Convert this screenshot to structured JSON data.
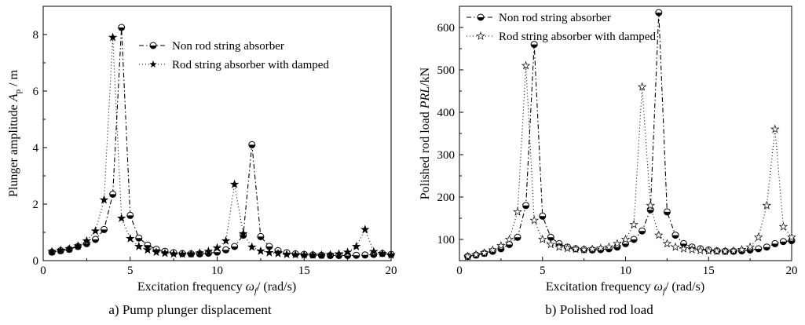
{
  "chart_data": [
    {
      "type": "line",
      "caption": "a) Pump plunger displacement",
      "xlabel": "Excitation frequency ω_f / (rad/s)",
      "ylabel": "Plunger amplitude A_p / m",
      "xlim": [
        0,
        20
      ],
      "ylim": [
        0,
        9
      ],
      "xticks": [
        "0",
        "5",
        "10",
        "15",
        "20"
      ],
      "yticks": [
        "0",
        "2",
        "4",
        "6",
        "8"
      ],
      "legend_position": "top-right",
      "grid": false,
      "series": [
        {
          "name": "Non rod string absorber",
          "marker": "half-filled circle",
          "dash": "dash-dot",
          "x": [
            0.5,
            1,
            1.5,
            2,
            2.5,
            3,
            3.5,
            4,
            4.5,
            5,
            5.5,
            6,
            6.5,
            7,
            7.5,
            8,
            8.5,
            9,
            9.5,
            10,
            10.5,
            11,
            11.5,
            12,
            12.5,
            13,
            13.5,
            14,
            14.5,
            15,
            15.5,
            16,
            16.5,
            17,
            17.5,
            18,
            18.5,
            19,
            19.5,
            20
          ],
          "y": [
            0.3,
            0.35,
            0.4,
            0.5,
            0.6,
            0.75,
            1.1,
            2.35,
            8.25,
            1.6,
            0.8,
            0.55,
            0.4,
            0.33,
            0.28,
            0.25,
            0.24,
            0.24,
            0.26,
            0.3,
            0.38,
            0.5,
            0.9,
            4.1,
            0.85,
            0.5,
            0.35,
            0.28,
            0.24,
            0.22,
            0.2,
            0.19,
            0.18,
            0.18,
            0.18,
            0.19,
            0.2,
            0.22,
            0.25,
            0.22
          ]
        },
        {
          "name": "Rod string absorber with damped",
          "marker": "star",
          "dash": "dotted",
          "x": [
            0.5,
            1,
            1.5,
            2,
            2.5,
            3,
            3.5,
            4,
            4.5,
            5,
            5.5,
            6,
            6.5,
            7,
            7.5,
            8,
            8.5,
            9,
            9.5,
            10,
            10.5,
            11,
            11.5,
            12,
            12.5,
            13,
            13.5,
            14,
            14.5,
            15,
            15.5,
            16,
            16.5,
            17,
            17.5,
            18,
            18.5,
            19,
            19.5,
            20
          ],
          "y": [
            0.32,
            0.37,
            0.42,
            0.52,
            0.7,
            1.05,
            2.15,
            7.9,
            1.5,
            0.78,
            0.5,
            0.38,
            0.3,
            0.26,
            0.24,
            0.23,
            0.24,
            0.27,
            0.33,
            0.45,
            0.7,
            2.7,
            0.95,
            0.48,
            0.34,
            0.28,
            0.25,
            0.22,
            0.21,
            0.2,
            0.2,
            0.2,
            0.21,
            0.24,
            0.3,
            0.5,
            1.1,
            0.32,
            0.25,
            0.2
          ]
        }
      ]
    },
    {
      "type": "line",
      "caption": "b) Polished rod load",
      "xlabel": "Excitation frequency ω_f / (rad/s)",
      "ylabel": "Polished rod load PRL/kN",
      "xlim": [
        0,
        20
      ],
      "ylim": [
        50,
        650
      ],
      "xticks": [
        "0",
        "5",
        "10",
        "15",
        "20"
      ],
      "yticks": [
        "100",
        "200",
        "300",
        "400",
        "500",
        "600"
      ],
      "legend_position": "top-left",
      "grid": false,
      "series": [
        {
          "name": "Non rod string absorber",
          "marker": "half-filled circle",
          "dash": "dash-dot",
          "x": [
            0.5,
            1,
            1.5,
            2,
            2.5,
            3,
            3.5,
            4,
            4.5,
            5,
            5.5,
            6,
            6.5,
            7,
            7.5,
            8,
            8.5,
            9,
            9.5,
            10,
            10.5,
            11,
            11.5,
            12,
            12.5,
            13,
            13.5,
            14,
            14.5,
            15,
            15.5,
            16,
            16.5,
            17,
            17.5,
            18,
            18.5,
            19,
            19.5,
            20
          ],
          "y": [
            60,
            63,
            67,
            72,
            78,
            88,
            105,
            180,
            560,
            155,
            105,
            90,
            82,
            78,
            76,
            75,
            76,
            78,
            82,
            90,
            100,
            120,
            170,
            635,
            165,
            110,
            90,
            82,
            78,
            75,
            73,
            72,
            72,
            73,
            75,
            78,
            82,
            90,
            95,
            97
          ]
        },
        {
          "name": "Rod string absorber with damped",
          "marker": "star",
          "dash": "dotted",
          "x": [
            0.5,
            1,
            1.5,
            2,
            2.5,
            3,
            3.5,
            4,
            4.5,
            5,
            5.5,
            6,
            6.5,
            7,
            7.5,
            8,
            8.5,
            9,
            9.5,
            10,
            10.5,
            11,
            11.5,
            12,
            12.5,
            13,
            13.5,
            14,
            14.5,
            15,
            15.5,
            16,
            16.5,
            17,
            17.5,
            18,
            18.5,
            19,
            19.5,
            20
          ],
          "y": [
            60,
            64,
            68,
            75,
            85,
            100,
            165,
            510,
            145,
            100,
            88,
            82,
            79,
            77,
            76,
            77,
            79,
            82,
            90,
            100,
            135,
            460,
            180,
            110,
            90,
            82,
            78,
            76,
            74,
            73,
            72,
            72,
            73,
            76,
            82,
            105,
            180,
            360,
            130,
            105
          ]
        }
      ]
    }
  ],
  "panels": [
    {
      "xlabel_main": "Excitation frequency ",
      "xlabel_sym": "ω",
      "xlabel_sub": "f",
      "xlabel_end": "/ (rad/s)",
      "ylabel_main": "Plunger amplitude ",
      "ylabel_sym": "A",
      "ylabel_sub": "p",
      "ylabel_end": " / m",
      "caption": "a) Pump plunger displacement",
      "legend": [
        "Non rod string absorber",
        "Rod string absorber with damped"
      ]
    },
    {
      "xlabel_main": "Excitation frequency ",
      "xlabel_sym": "ω",
      "xlabel_sub": "f",
      "xlabel_end": "/ (rad/s)",
      "ylabel_main": "Polished rod load ",
      "ylabel_sym": "PRL",
      "ylabel_sub": "",
      "ylabel_end": "/kN",
      "caption": "b) Polished rod load",
      "legend": [
        "Non rod string absorber",
        "Rod string absorber with damped"
      ]
    }
  ]
}
